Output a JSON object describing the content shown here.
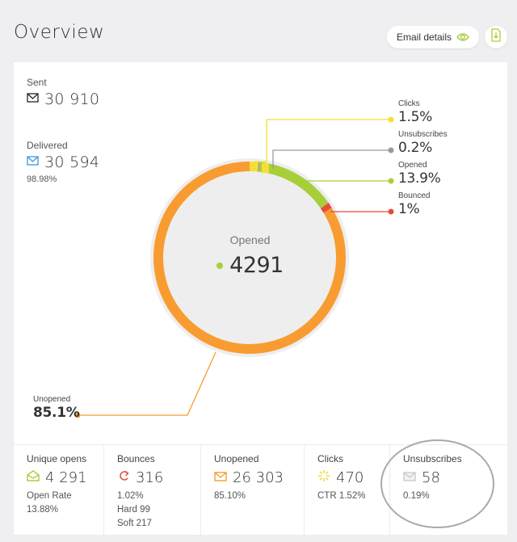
{
  "header": {
    "title": "Overview",
    "email_details_label": "Email details"
  },
  "colors": {
    "opened": "#a7cf3a",
    "unopened": "#f89c31",
    "clicks": "#f3e033",
    "unsubscribes": "#9a9a9a",
    "bounced": "#e64a3b",
    "ring_bg": "#eeeeee"
  },
  "stats": {
    "sent": {
      "label": "Sent",
      "value": "30 910",
      "icon": "sent-envelope-icon"
    },
    "delivered": {
      "label": "Delivered",
      "value": "30 594",
      "sub": "98.98%",
      "icon": "delivered-envelope-icon"
    }
  },
  "donut": {
    "center_label": "Opened",
    "center_value": "4291",
    "unopened_pct": 85.1,
    "opened_pct": 13.9,
    "clicks_pct": 1.5,
    "unsubscribes_pct": 0.2,
    "bounced_pct": 1
  },
  "callouts": {
    "clicks": {
      "label": "Clicks",
      "value": "1.5%"
    },
    "unsubscribes": {
      "label": "Unsubscribes",
      "value": "0.2%"
    },
    "opened": {
      "label": "Opened",
      "value": "13.9%"
    },
    "bounced": {
      "label": "Bounced",
      "value": "1%"
    },
    "unopened": {
      "label": "Unopened",
      "value": "85.1%"
    }
  },
  "bottom": {
    "unique_opens": {
      "label": "Unique opens",
      "value": "4 291",
      "lines": [
        "Open Rate",
        "13.88%"
      ],
      "icon": "open-envelope-icon"
    },
    "bounces": {
      "label": "Bounces",
      "value": "316",
      "lines": [
        "1.02%",
        "Hard 99",
        "Soft 217"
      ],
      "icon": "bounce-arrow-icon"
    },
    "unopened": {
      "label": "Unopened",
      "value": "26 303",
      "lines": [
        "85.10%"
      ],
      "icon": "closed-envelope-icon"
    },
    "clicks": {
      "label": "Clicks",
      "value": "470",
      "lines": [
        "CTR 1.52%"
      ],
      "icon": "click-burst-icon"
    },
    "unsubscribes": {
      "label": "Unsubscribes",
      "value": "58",
      "lines": [
        "0.19%"
      ],
      "icon": "unsubscribe-envelope-icon"
    }
  }
}
